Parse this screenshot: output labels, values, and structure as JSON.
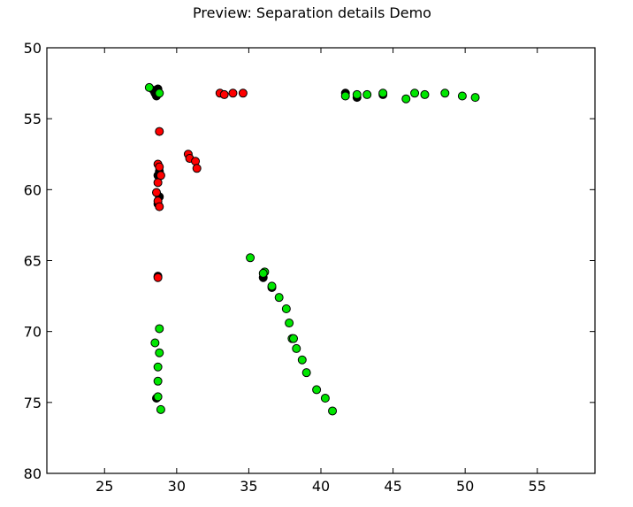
{
  "chart_data": {
    "type": "scatter",
    "title": "Preview: Separation details Demo",
    "xlabel": "",
    "ylabel": "",
    "xlim": [
      21,
      59
    ],
    "ylim": [
      50,
      80
    ],
    "y_inverted": true,
    "grid": false,
    "xticks": [
      25,
      30,
      35,
      40,
      45,
      50,
      55
    ],
    "yticks": [
      50,
      55,
      60,
      65,
      70,
      75,
      80
    ],
    "series": [
      {
        "color": "#000000",
        "points": [
          [
            28.5,
            53.2
          ],
          [
            28.6,
            53.4
          ],
          [
            28.7,
            52.9
          ],
          [
            28.4,
            53.0
          ],
          [
            28.6,
            53.3
          ],
          [
            41.7,
            53.2
          ],
          [
            42.5,
            53.5
          ],
          [
            44.3,
            53.3
          ],
          [
            28.8,
            58.7
          ],
          [
            28.7,
            59.0
          ],
          [
            28.8,
            60.5
          ],
          [
            28.7,
            61.0
          ],
          [
            28.7,
            66.1
          ],
          [
            36.0,
            66.2
          ],
          [
            36.6,
            66.9
          ],
          [
            28.6,
            74.7
          ]
        ]
      },
      {
        "color": "#ff0000",
        "points": [
          [
            28.8,
            55.9
          ],
          [
            28.7,
            58.2
          ],
          [
            28.8,
            58.4
          ],
          [
            28.9,
            59.0
          ],
          [
            28.7,
            59.5
          ],
          [
            28.6,
            60.2
          ],
          [
            28.7,
            60.8
          ],
          [
            28.8,
            61.2
          ],
          [
            28.7,
            66.2
          ],
          [
            30.8,
            57.5
          ],
          [
            30.9,
            57.8
          ],
          [
            31.3,
            58.0
          ],
          [
            31.4,
            58.5
          ],
          [
            33.0,
            53.2
          ],
          [
            33.3,
            53.3
          ],
          [
            33.9,
            53.2
          ],
          [
            34.6,
            53.2
          ]
        ]
      },
      {
        "color": "#00e600",
        "points": [
          [
            28.1,
            52.8
          ],
          [
            28.8,
            53.2
          ],
          [
            41.7,
            53.4
          ],
          [
            42.5,
            53.3
          ],
          [
            43.2,
            53.3
          ],
          [
            44.3,
            53.2
          ],
          [
            45.9,
            53.6
          ],
          [
            46.5,
            53.2
          ],
          [
            47.2,
            53.3
          ],
          [
            48.6,
            53.2
          ],
          [
            49.8,
            53.4
          ],
          [
            50.7,
            53.5
          ],
          [
            28.8,
            69.8
          ],
          [
            28.5,
            70.8
          ],
          [
            28.8,
            71.5
          ],
          [
            28.7,
            72.5
          ],
          [
            28.7,
            73.5
          ],
          [
            28.7,
            74.6
          ],
          [
            28.9,
            75.5
          ],
          [
            35.1,
            64.8
          ],
          [
            36.1,
            65.8
          ],
          [
            36.0,
            65.9
          ],
          [
            36.6,
            66.8
          ],
          [
            37.1,
            67.6
          ],
          [
            37.6,
            68.4
          ],
          [
            37.8,
            69.4
          ],
          [
            38.0,
            70.5
          ],
          [
            38.1,
            70.5
          ],
          [
            38.3,
            71.2
          ],
          [
            38.7,
            72.0
          ],
          [
            39.0,
            72.9
          ],
          [
            39.7,
            74.1
          ],
          [
            40.3,
            74.7
          ],
          [
            40.8,
            75.6
          ]
        ]
      }
    ]
  }
}
